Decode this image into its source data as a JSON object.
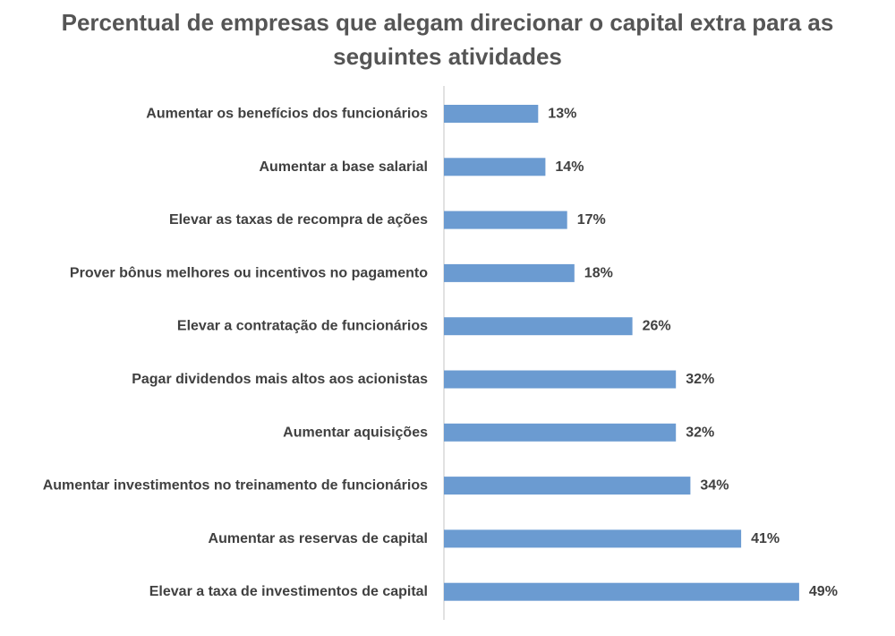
{
  "chart_data": {
    "type": "bar",
    "orientation": "horizontal",
    "title": "Percentual de empresas que alegam direcionar o capital extra para as seguintes atividades",
    "categories": [
      "Aumentar os benefícios dos funcionários",
      "Aumentar a base salarial",
      "Elevar as taxas de recompra de ações",
      "Prover bônus melhores ou incentivos no pagamento",
      "Elevar a contratação de funcionários",
      "Pagar dividendos mais altos aos acionistas",
      "Aumentar aquisições",
      "Aumentar investimentos no treinamento de funcionários",
      "Aumentar as reservas de capital",
      "Elevar a taxa de investimentos de capital"
    ],
    "values": [
      13,
      14,
      17,
      18,
      26,
      32,
      32,
      34,
      41,
      49
    ],
    "value_labels": [
      "13%",
      "14%",
      "17%",
      "18%",
      "26%",
      "32%",
      "32%",
      "34%",
      "41%",
      "49%"
    ],
    "unit": "%",
    "xlim": [
      0,
      50
    ],
    "grid": false,
    "legend": "none",
    "bar_color": "#6b9bd1"
  }
}
